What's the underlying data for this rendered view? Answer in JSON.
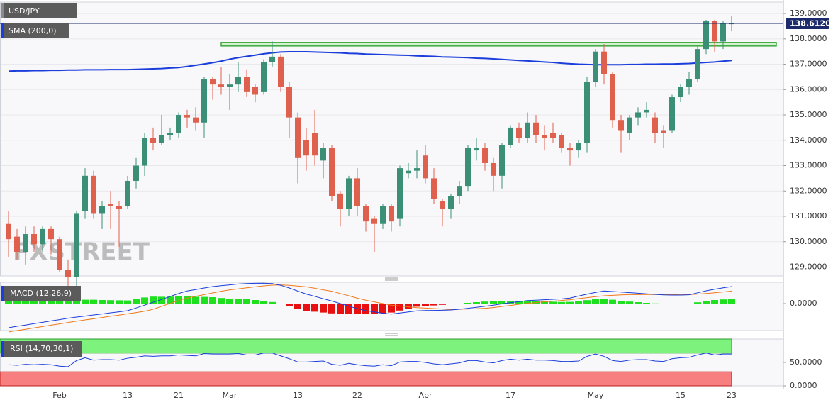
{
  "chart_data": [
    {
      "type": "candlestick",
      "title": "USD/JPY",
      "watermark": "FXSTREET",
      "categories": [
        null,
        null,
        null,
        null,
        null,
        null,
        "Feb",
        null,
        null,
        null,
        null,
        null,
        null,
        null,
        "13",
        null,
        null,
        null,
        null,
        null,
        "21",
        null,
        null,
        null,
        null,
        null,
        "Mar",
        null,
        null,
        null,
        null,
        null,
        null,
        null,
        "13",
        null,
        null,
        null,
        null,
        null,
        null,
        "22",
        null,
        null,
        null,
        null,
        null,
        null,
        null,
        "Apr",
        null,
        null,
        null,
        null,
        null,
        null,
        null,
        null,
        null,
        "17",
        null,
        null,
        null,
        null,
        null,
        null,
        null,
        null,
        null,
        "May",
        null,
        null,
        null,
        null,
        null,
        null,
        null,
        null,
        null,
        "15",
        null,
        null,
        null,
        null,
        null,
        "23"
      ],
      "open": [
        130.7,
        130.2,
        129.6,
        130.3,
        129.9,
        130.5,
        130.1,
        128.9,
        128.6,
        131.2,
        132.6,
        131.1,
        131.5,
        131.4,
        131.4,
        132.4,
        133.0,
        134.1,
        133.9,
        134.2,
        134.3,
        135.0,
        134.9,
        134.7,
        136.4,
        136.2,
        136.1,
        136.2,
        136.5,
        136.1,
        135.9,
        137.1,
        137.3,
        136.1,
        134.9,
        134.0,
        134.3,
        133.2,
        133.7,
        131.9,
        131.3,
        132.5,
        131.4,
        130.9,
        130.7,
        131.4,
        130.9,
        132.7,
        132.8,
        133.4,
        132.5,
        131.6,
        131.3,
        131.8,
        132.2,
        133.6,
        133.7,
        133.1,
        132.6,
        133.8,
        134.5,
        134.1,
        134.7,
        134.2,
        134.3,
        134.2,
        133.7,
        133.6,
        133.9,
        136.3,
        137.5,
        136.6,
        134.8,
        134.3,
        134.9,
        135.1,
        134.9,
        134.4,
        134.4,
        135.7,
        136.1,
        136.4,
        137.6,
        138.7,
        137.9,
        138.58
      ],
      "high": [
        131.2,
        130.5,
        130.6,
        130.6,
        130.6,
        130.6,
        130.2,
        129.3,
        131.2,
        132.9,
        132.8,
        131.6,
        132.0,
        131.6,
        132.6,
        133.3,
        134.3,
        134.5,
        135.0,
        134.5,
        135.1,
        135.2,
        135.3,
        136.5,
        136.5,
        136.9,
        136.6,
        137.1,
        136.8,
        136.2,
        137.2,
        137.9,
        137.4,
        136.3,
        135.1,
        134.5,
        135.2,
        133.9,
        133.8,
        132.0,
        132.6,
        132.9,
        131.5,
        131.0,
        131.5,
        131.5,
        133.0,
        133.1,
        133.6,
        133.8,
        132.9,
        131.7,
        131.9,
        132.4,
        133.8,
        134.1,
        133.9,
        133.3,
        133.9,
        134.6,
        134.7,
        135.1,
        135.0,
        134.6,
        134.7,
        134.3,
        133.9,
        134.0,
        136.5,
        137.6,
        137.8,
        136.7,
        135.0,
        135.0,
        135.3,
        135.5,
        135.1,
        134.6,
        135.8,
        136.2,
        136.7,
        137.7,
        138.75,
        138.75,
        138.7,
        138.9
      ],
      "low": [
        129.4,
        129.3,
        129.1,
        129.6,
        129.6,
        129.5,
        128.8,
        128.1,
        128.1,
        130.9,
        130.9,
        130.5,
        130.5,
        129.8,
        131.3,
        132.1,
        132.6,
        133.6,
        133.8,
        134.0,
        134.1,
        134.5,
        134.4,
        134.1,
        135.6,
        135.8,
        135.2,
        135.9,
        135.7,
        135.5,
        135.8,
        136.9,
        135.9,
        134.1,
        132.3,
        132.8,
        133.0,
        132.5,
        131.6,
        130.6,
        131.0,
        131.0,
        130.4,
        129.6,
        130.5,
        130.4,
        130.6,
        132.5,
        132.5,
        132.3,
        131.5,
        130.6,
        130.9,
        131.5,
        132.0,
        133.2,
        132.8,
        132.0,
        132.1,
        133.7,
        133.9,
        133.9,
        133.9,
        133.6,
        133.9,
        133.5,
        133.0,
        133.3,
        133.5,
        136.1,
        136.2,
        134.5,
        133.5,
        134.0,
        134.6,
        134.9,
        133.9,
        133.7,
        134.3,
        135.5,
        135.8,
        136.3,
        137.4,
        137.5,
        137.6,
        138.3
      ],
      "close": [
        130.1,
        129.6,
        130.3,
        129.9,
        130.5,
        130.1,
        128.9,
        128.6,
        131.1,
        132.6,
        131.1,
        131.4,
        131.4,
        131.3,
        132.4,
        133.0,
        134.1,
        133.9,
        134.2,
        134.3,
        135.0,
        134.9,
        134.7,
        136.4,
        136.2,
        136.1,
        136.2,
        136.5,
        135.9,
        135.8,
        137.1,
        137.3,
        136.1,
        134.9,
        133.3,
        133.4,
        133.4,
        133.7,
        131.8,
        131.3,
        132.5,
        131.4,
        130.8,
        130.7,
        131.4,
        130.8,
        132.9,
        132.8,
        132.9,
        132.5,
        131.7,
        131.3,
        131.8,
        132.2,
        133.7,
        133.7,
        133.1,
        132.6,
        133.8,
        134.5,
        134.1,
        134.7,
        134.2,
        134.1,
        134.1,
        133.7,
        133.6,
        133.9,
        136.3,
        137.5,
        136.6,
        134.8,
        134.4,
        134.9,
        135.1,
        135.2,
        134.3,
        134.3,
        135.7,
        136.1,
        136.4,
        137.6,
        138.7,
        137.9,
        138.6,
        138.61
      ],
      "up_color": "#3b8f77",
      "down_color": "#e0604e",
      "series": [
        {
          "name": "SMA (200,0)",
          "color": "#1a3ddb",
          "values": [
            136.73,
            136.74,
            136.74,
            136.75,
            136.75,
            136.76,
            136.76,
            136.77,
            136.77,
            136.78,
            136.78,
            136.78,
            136.79,
            136.79,
            136.79,
            136.8,
            136.81,
            136.82,
            136.83,
            136.85,
            136.87,
            136.91,
            136.96,
            137.01,
            137.06,
            137.12,
            137.2,
            137.26,
            137.31,
            137.36,
            137.41,
            137.45,
            137.48,
            137.49,
            137.49,
            137.49,
            137.48,
            137.47,
            137.46,
            137.45,
            137.43,
            137.42,
            137.4,
            137.39,
            137.38,
            137.37,
            137.36,
            137.35,
            137.33,
            137.32,
            137.31,
            137.29,
            137.28,
            137.27,
            137.26,
            137.24,
            137.23,
            137.21,
            137.19,
            137.17,
            137.15,
            137.13,
            137.11,
            137.09,
            137.07,
            137.04,
            137.02,
            137.0,
            136.99,
            136.98,
            136.98,
            136.98,
            136.98,
            136.99,
            136.99,
            137.0,
            137.0,
            137.01,
            137.01,
            137.02,
            137.03,
            137.05,
            137.07,
            137.09,
            137.12,
            137.15
          ]
        }
      ],
      "zone": {
        "from_category": 25,
        "low": 137.72,
        "high": 137.86,
        "color": "#3aa83a"
      },
      "last_price": {
        "value": 138.612,
        "label": "138.6120",
        "color": "#1c2a6b"
      },
      "ylim": [
        128.65,
        139.45
      ],
      "yticks": [
        {
          "value": 129,
          "label": "129.0000"
        },
        {
          "value": 130,
          "label": "130.0000"
        },
        {
          "value": 131,
          "label": "131.0000"
        },
        {
          "value": 132,
          "label": "132.0000"
        },
        {
          "value": 133,
          "label": "133.0000"
        },
        {
          "value": 134,
          "label": "134.0000"
        },
        {
          "value": 135,
          "label": "135.0000"
        },
        {
          "value": 136,
          "label": "136.0000"
        },
        {
          "value": 137,
          "label": "137.0000"
        },
        {
          "value": 138,
          "label": "138.0000"
        },
        {
          "value": 139,
          "label": "139.0000"
        }
      ],
      "grid": true
    },
    {
      "type": "macd",
      "title": "MACD (12,26,9)",
      "macd": {
        "color": "#1a3ddb",
        "values": [
          -1.7,
          -1.6,
          -1.51,
          -1.41,
          -1.32,
          -1.22,
          -1.13,
          -1.03,
          -0.95,
          -0.88,
          -0.8,
          -0.73,
          -0.65,
          -0.58,
          -0.5,
          -0.31,
          -0.11,
          0.09,
          0.29,
          0.5,
          0.71,
          0.89,
          0.99,
          1.1,
          1.2,
          1.26,
          1.32,
          1.38,
          1.41,
          1.43,
          1.44,
          1.41,
          1.29,
          1.1,
          0.88,
          0.67,
          0.51,
          0.34,
          0.18,
          0.0,
          -0.18,
          -0.36,
          -0.5,
          -0.59,
          -0.68,
          -0.74,
          -0.66,
          -0.59,
          -0.51,
          -0.49,
          -0.48,
          -0.47,
          -0.45,
          -0.4,
          -0.33,
          -0.26,
          -0.19,
          -0.11,
          -0.02,
          0.06,
          0.14,
          0.21,
          0.24,
          0.27,
          0.3,
          0.33,
          0.39,
          0.53,
          0.66,
          0.79,
          0.89,
          0.85,
          0.81,
          0.77,
          0.73,
          0.69,
          0.65,
          0.61,
          0.6,
          0.6,
          0.62,
          0.76,
          0.9,
          1.01,
          1.11,
          1.2
        ]
      },
      "signal": {
        "color": "#f07a1a",
        "values": [
          -2.0,
          -1.9,
          -1.81,
          -1.71,
          -1.62,
          -1.52,
          -1.43,
          -1.33,
          -1.24,
          -1.15,
          -1.07,
          -0.98,
          -0.89,
          -0.81,
          -0.72,
          -0.63,
          -0.54,
          -0.4,
          -0.19,
          0.01,
          0.21,
          0.39,
          0.51,
          0.63,
          0.75,
          0.87,
          0.97,
          1.04,
          1.11,
          1.18,
          1.25,
          1.3,
          1.32,
          1.29,
          1.24,
          1.18,
          1.08,
          0.97,
          0.87,
          0.71,
          0.55,
          0.38,
          0.24,
          0.12,
          0.0,
          -0.11,
          -0.17,
          -0.23,
          -0.29,
          -0.32,
          -0.35,
          -0.38,
          -0.41,
          -0.4,
          -0.38,
          -0.36,
          -0.33,
          -0.28,
          -0.2,
          -0.13,
          -0.05,
          0.02,
          0.07,
          0.12,
          0.17,
          0.22,
          0.27,
          0.35,
          0.42,
          0.49,
          0.55,
          0.58,
          0.61,
          0.63,
          0.63,
          0.64,
          0.64,
          0.63,
          0.63,
          0.62,
          0.63,
          0.67,
          0.71,
          0.76,
          0.82,
          0.88
        ]
      },
      "histogram": {
        "up_color": "#1fe01f",
        "down_color": "#e81010",
        "values": [
          0.3,
          0.3,
          0.3,
          0.3,
          0.3,
          0.3,
          0.3,
          0.3,
          0.29,
          0.27,
          0.27,
          0.25,
          0.24,
          0.23,
          0.22,
          0.32,
          0.43,
          0.49,
          0.48,
          0.49,
          0.5,
          0.5,
          0.48,
          0.47,
          0.45,
          0.39,
          0.35,
          0.34,
          0.3,
          0.25,
          0.19,
          0.11,
          -0.03,
          -0.19,
          -0.36,
          -0.51,
          -0.57,
          -0.63,
          -0.69,
          -0.71,
          -0.73,
          -0.74,
          -0.74,
          -0.71,
          -0.68,
          -0.63,
          -0.49,
          -0.36,
          -0.22,
          -0.17,
          -0.13,
          -0.09,
          -0.04,
          0.0,
          0.05,
          0.1,
          0.14,
          0.17,
          0.18,
          0.19,
          0.19,
          0.19,
          0.17,
          0.15,
          0.13,
          0.11,
          0.12,
          0.18,
          0.24,
          0.3,
          0.34,
          0.27,
          0.2,
          0.14,
          0.1,
          0.05,
          0.01,
          -0.02,
          -0.03,
          -0.02,
          -0.01,
          0.09,
          0.19,
          0.25,
          0.29,
          0.32
        ]
      },
      "ylim": [
        -1.9,
        1.5
      ],
      "yticks": [
        {
          "value": 0,
          "label": "0.0000"
        }
      ]
    },
    {
      "type": "rsi",
      "title": "RSI (14,70,30,1)",
      "color": "#1a3ddb",
      "values": [
        45,
        44,
        46,
        45,
        46,
        45,
        42,
        41,
        54,
        60,
        55,
        56,
        56,
        55,
        59,
        61,
        64,
        63,
        64,
        64,
        66,
        65,
        64,
        69,
        68,
        68,
        68,
        69,
        66,
        66,
        70,
        70,
        64,
        58,
        51,
        51,
        52,
        53,
        46,
        44,
        48,
        45,
        43,
        42,
        45,
        43,
        51,
        52,
        52,
        50,
        47,
        45,
        47,
        49,
        54,
        54,
        51,
        49,
        54,
        57,
        55,
        57,
        55,
        55,
        54,
        52,
        52,
        53,
        63,
        68,
        63,
        54,
        52,
        55,
        56,
        56,
        53,
        52,
        58,
        60,
        61,
        66,
        70,
        66,
        68,
        68
      ],
      "overbought": 70,
      "oversold": 30,
      "overbought_color": "#7df27d",
      "oversold_color": "#f77f7f",
      "ylim": [
        0,
        100
      ],
      "yticks": [
        {
          "value": 50,
          "label": "50.0000"
        },
        {
          "value": 0,
          "label": "0.0000"
        }
      ]
    }
  ]
}
